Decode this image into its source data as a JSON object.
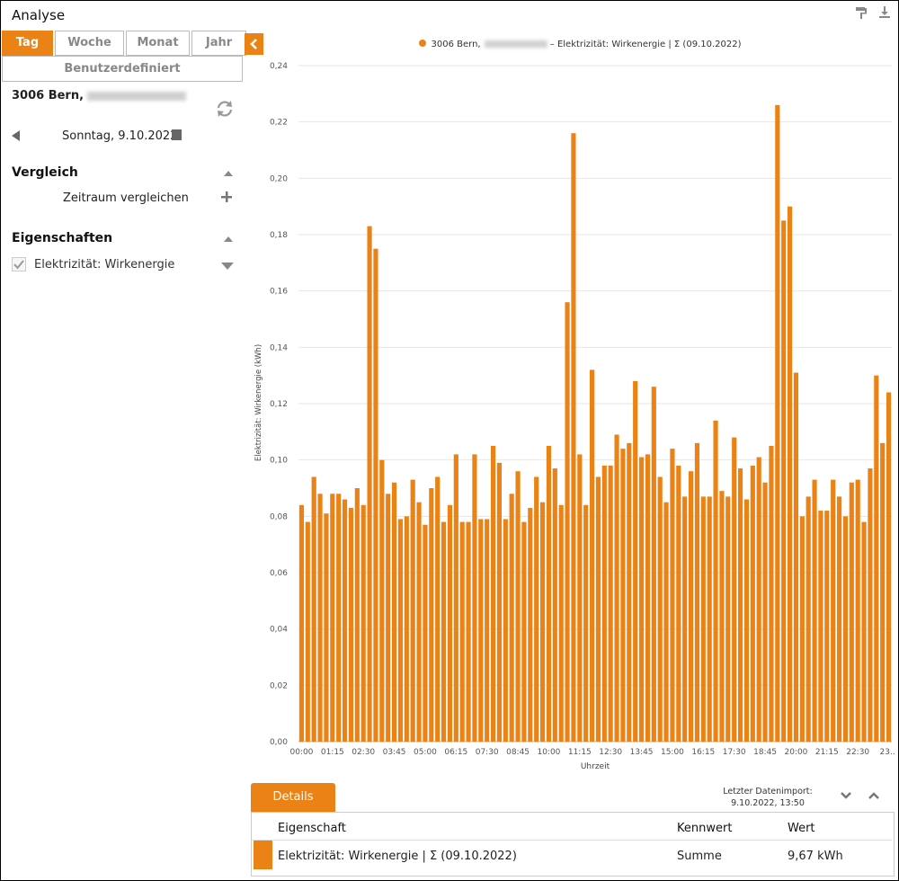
{
  "app": {
    "title": "Analyse"
  },
  "tabs": [
    {
      "label": "Tag",
      "active": true
    },
    {
      "label": "Woche",
      "active": false
    },
    {
      "label": "Monat",
      "active": false
    },
    {
      "label": "Jahr",
      "active": false
    }
  ],
  "custom_tab": "Benutzerdefiniert",
  "location": "3006 Bern,",
  "date": "Sonntag, 9.10.2022",
  "compare": {
    "title": "Vergleich",
    "row_label": "Zeitraum vergleichen"
  },
  "properties": {
    "title": "Eigenschaften",
    "item": "Elektrizität: Wirkenergie",
    "checked": true
  },
  "legend": {
    "prefix": "3006 Bern,",
    "suffix": "– Elektrizität: Wirkenergie | Σ (09.10.2022)"
  },
  "colors": {
    "accent": "#ea8216",
    "bar": "#ea8216"
  },
  "icons": {
    "paint": "paint-roller-icon",
    "download": "download-icon",
    "refresh": "refresh-icon",
    "calendar": "calendar-icon"
  },
  "chart_data": {
    "type": "bar",
    "xlabel": "Uhrzeit",
    "ylabel": "Elektrizität: Wirkenergie (kWh)",
    "ylim": [
      0,
      0.24
    ],
    "yticks": [
      "0,00",
      "0,02",
      "0,04",
      "0,06",
      "0,08",
      "0,10",
      "0,12",
      "0,14",
      "0,16",
      "0,18",
      "0,20",
      "0,22",
      "0,24"
    ],
    "xticks": [
      "00:00",
      "01:15",
      "02:30",
      "03:45",
      "05:00",
      "06:15",
      "07:30",
      "08:45",
      "10:00",
      "11:15",
      "12:30",
      "13:45",
      "15:00",
      "16:15",
      "17:30",
      "18:45",
      "20:00",
      "21:15",
      "22:30",
      "23..."
    ],
    "grid": true,
    "series": [
      {
        "values": [
          0.084,
          0.078,
          0.094,
          0.088,
          0.081,
          0.088,
          0.088,
          0.086,
          0.083,
          0.09,
          0.084,
          0.183,
          0.175,
          0.1,
          0.088,
          0.092,
          0.079,
          0.08,
          0.093,
          0.085,
          0.077,
          0.09,
          0.094,
          0.078,
          0.084,
          0.102,
          0.078,
          0.078,
          0.102,
          0.079,
          0.079,
          0.105,
          0.099,
          0.079,
          0.088,
          0.096,
          0.078,
          0.083,
          0.094,
          0.085,
          0.105,
          0.097,
          0.084,
          0.156,
          0.216,
          0.102,
          0.084,
          0.132,
          0.094,
          0.098,
          0.098,
          0.109,
          0.104,
          0.106,
          0.128,
          0.101,
          0.102,
          0.126,
          0.094,
          0.085,
          0.104,
          0.098,
          0.087,
          0.096,
          0.106,
          0.087,
          0.087,
          0.114,
          0.089,
          0.087,
          0.108,
          0.097,
          0.086,
          0.098,
          0.101,
          0.092,
          0.105,
          0.226,
          0.185,
          0.19,
          0.131,
          0.08,
          0.087,
          0.093,
          0.082,
          0.082,
          0.093,
          0.087,
          0.08,
          0.092,
          0.093,
          0.078,
          0.097,
          0.13,
          0.106,
          0.124
        ]
      }
    ]
  },
  "details": {
    "tab_label": "Details",
    "import_label": "Letzter Datenimport:",
    "import_time": "9.10.2022, 13:50",
    "columns": [
      "Eigenschaft",
      "Kennwert",
      "Wert"
    ],
    "row": {
      "property": "Elektrizität: Wirkenergie | Σ (09.10.2022)",
      "kennwert": "Summe",
      "wert": "9,67 kWh"
    }
  }
}
